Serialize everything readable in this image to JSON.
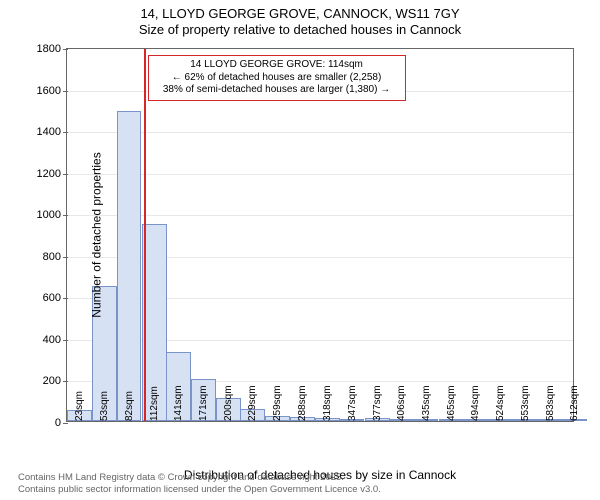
{
  "title": {
    "line1": "14, LLOYD GEORGE GROVE, CANNOCK, WS11 7GY",
    "line2": "Size of property relative to detached houses in Cannock"
  },
  "chart": {
    "type": "bar",
    "ylabel": "Number of detached properties",
    "xlabel": "Distribution of detached houses by size in Cannock",
    "ylim": [
      0,
      1800
    ],
    "ytick_step": 200,
    "background_color": "#ffffff",
    "grid_color": "#e8e8e8",
    "axis_color": "#666666",
    "bar_fill": "#d6e2f3",
    "bar_border": "#7a93c8",
    "marker_color": "#d62728",
    "marker_x": 114,
    "x_min": 23,
    "x_max": 627,
    "bar_bin_width": 29.45,
    "categories": [
      "23sqm",
      "53sqm",
      "82sqm",
      "112sqm",
      "141sqm",
      "171sqm",
      "200sqm",
      "229sqm",
      "259sqm",
      "288sqm",
      "318sqm",
      "347sqm",
      "377sqm",
      "406sqm",
      "435sqm",
      "465sqm",
      "494sqm",
      "524sqm",
      "553sqm",
      "583sqm",
      "612sqm"
    ],
    "values": [
      55,
      650,
      1490,
      950,
      330,
      200,
      110,
      60,
      25,
      18,
      15,
      10,
      15,
      8,
      3,
      2,
      2,
      2,
      2,
      1,
      1
    ],
    "label_fontsize": 12,
    "tick_fontsize": 11,
    "title_fontsize": 13,
    "annotation": {
      "line1": "14 LLOYD GEORGE GROVE: 114sqm",
      "line2": "← 62% of detached houses are smaller (2,258)",
      "line3": "38% of semi-detached houses are larger (1,380) →",
      "border_color": "#d62728",
      "text_color": "#000000",
      "fontsize": 10
    }
  },
  "footer": {
    "line1": "Contains HM Land Registry data © Crown copyright and database right 2025.",
    "line2": "Contains public sector information licensed under the Open Government Licence v3.0.",
    "color": "#666666"
  }
}
